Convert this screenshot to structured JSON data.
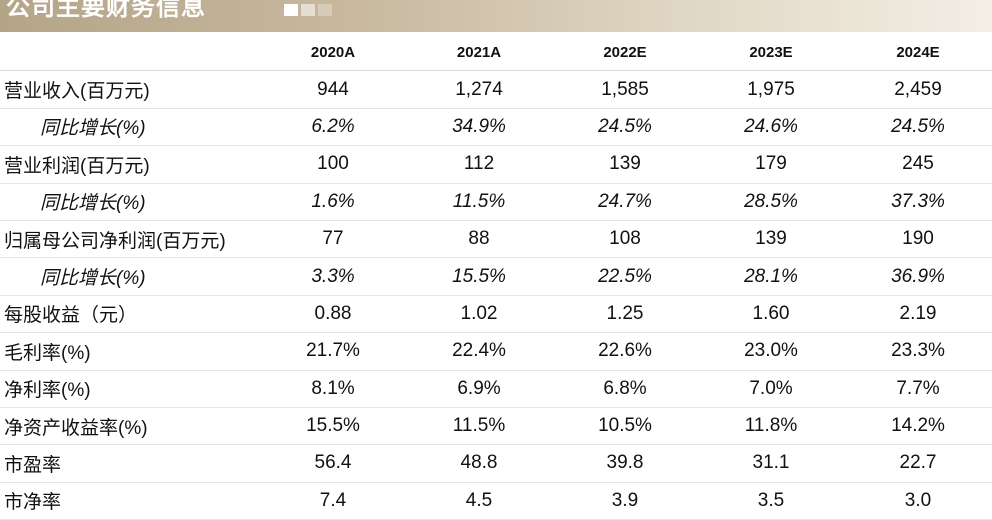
{
  "header": {
    "title": "公司主要财务信息"
  },
  "table": {
    "columns": [
      "2020A",
      "2021A",
      "2022E",
      "2023E",
      "2024E"
    ],
    "rows": [
      {
        "label": "营业收入(百万元)",
        "values": [
          "944",
          "1,274",
          "1,585",
          "1,975",
          "2,459"
        ],
        "italic": false
      },
      {
        "label": "同比增长(%)",
        "values": [
          "6.2%",
          "34.9%",
          "24.5%",
          "24.6%",
          "24.5%"
        ],
        "italic": true
      },
      {
        "label": "营业利润(百万元)",
        "values": [
          "100",
          "112",
          "139",
          "179",
          "245"
        ],
        "italic": false
      },
      {
        "label": "同比增长(%)",
        "values": [
          "1.6%",
          "11.5%",
          "24.7%",
          "28.5%",
          "37.3%"
        ],
        "italic": true
      },
      {
        "label": "归属母公司净利润(百万元)",
        "values": [
          "77",
          "88",
          "108",
          "139",
          "190"
        ],
        "italic": false
      },
      {
        "label": "同比增长(%)",
        "values": [
          "3.3%",
          "15.5%",
          "22.5%",
          "28.1%",
          "36.9%"
        ],
        "italic": true
      },
      {
        "label": "每股收益（元）",
        "values": [
          "0.88",
          "1.02",
          "1.25",
          "1.60",
          "2.19"
        ],
        "italic": false
      },
      {
        "label": "毛利率(%)",
        "values": [
          "21.7%",
          "22.4%",
          "22.6%",
          "23.0%",
          "23.3%"
        ],
        "italic": false
      },
      {
        "label": "净利率(%)",
        "values": [
          "8.1%",
          "6.9%",
          "6.8%",
          "7.0%",
          "7.7%"
        ],
        "italic": false
      },
      {
        "label": "净资产收益率(%)",
        "values": [
          "15.5%",
          "11.5%",
          "10.5%",
          "11.8%",
          "14.2%"
        ],
        "italic": false
      },
      {
        "label": "市盈率",
        "values": [
          "56.4",
          "48.8",
          "39.8",
          "31.1",
          "22.7"
        ],
        "italic": false
      },
      {
        "label": "市净率",
        "values": [
          "7.4",
          "4.5",
          "3.9",
          "3.5",
          "3.0"
        ],
        "italic": false
      }
    ]
  }
}
